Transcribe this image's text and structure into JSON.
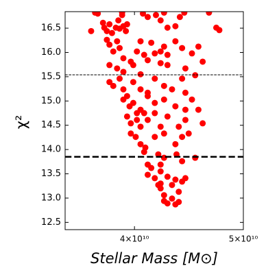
{
  "chart_data": {
    "type": "scatter",
    "x_label": "Stellar Mass [M⊙]",
    "y_label": "χ²",
    "color": "#ff0000",
    "xscale": "log",
    "xlim": [
      34700000000.0,
      50000000000.0
    ],
    "xticks": [
      {
        "value": 40000000000.0,
        "label": "4×10¹⁰"
      },
      {
        "value": 50000000000.0,
        "label": "5×10¹⁰"
      }
    ],
    "ylim": [
      12.35,
      16.84
    ],
    "yticks": [
      12.5,
      {
        "value": 13,
        "label": "13.0"
      },
      13.5,
      {
        "value": 14,
        "label": "14.0"
      },
      14.5,
      {
        "value": 15,
        "label": "15.0"
      },
      15.5,
      {
        "value": 16,
        "label": "16.0"
      },
      16.5
    ],
    "hlines": [
      {
        "value": 15.54,
        "linewidth": 1
      },
      {
        "value": 13.85,
        "linewidth": 2.5
      }
    ],
    "x": [
      36600000000.0,
      36900000000.0,
      37100000000.0,
      37500000000.0,
      37600000000.0,
      37800000000.0,
      38000000000.0,
      38200000000.0,
      38500000000.0,
      38700000000.0,
      38800000000.0,
      39000000000.0,
      39100000000.0,
      39300000000.0,
      39400000000.0,
      39000000000.0,
      40700000000.0,
      41100000000.0,
      41800000000.0,
      42200000000.0,
      42500000000.0,
      42800000000.0,
      43500000000.0,
      43900000000.0,
      44300000000.0,
      46600000000.0,
      47300000000.0,
      47600000000.0,
      37800000000.0,
      38000000000.0,
      38300000000.0,
      38600000000.0,
      38800000000.0,
      39100000000.0,
      39700000000.0,
      40200000000.0,
      40500000000.0,
      40800000000.0,
      41400000000.0,
      41700000000.0,
      42200000000.0,
      42500000000.0,
      42800000000.0,
      43500000000.0,
      44100000000.0,
      45000000000.0,
      45600000000.0,
      38000000000.0,
      38600000000.0,
      39100000000.0,
      39900000000.0,
      40500000000.0,
      41100000000.0,
      42200000000.0,
      42800000000.0,
      44400000000.0,
      45300000000.0,
      46000000000.0,
      38000000000.0,
      38300000000.0,
      38800000000.0,
      39100000000.0,
      39400000000.0,
      39900000000.0,
      40500000000.0,
      41100000000.0,
      41700000000.0,
      42500000000.0,
      43200000000.0,
      44100000000.0,
      44400000000.0,
      39100000000.0,
      39600000000.0,
      39900000000.0,
      40200000000.0,
      40500000000.0,
      41100000000.0,
      41700000000.0,
      42500000000.0,
      43500000000.0,
      44400000000.0,
      45000000000.0,
      45600000000.0,
      39400000000.0,
      39700000000.0,
      40200000000.0,
      40500000000.0,
      40800000000.0,
      41100000000.0,
      41700000000.0,
      42200000000.0,
      42800000000.0,
      43800000000.0,
      44400000000.0,
      46000000000.0,
      39700000000.0,
      40100000000.0,
      40500000000.0,
      40900000000.0,
      41700000000.0,
      42500000000.0,
      43500000000.0,
      44100000000.0,
      44700000000.0,
      45300000000.0,
      40800000000.0,
      41100000000.0,
      41400000000.0,
      42000000000.0,
      42200000000.0,
      42500000000.0,
      43600000000.0,
      44100000000.0,
      41100000000.0,
      41700000000.0,
      42200000000.0,
      42800000000.0,
      43500000000.0,
      44400000000.0,
      42000000000.0,
      42200000000.0,
      42500000000.0,
      43200000000.0,
      43800000000.0,
      44100000000.0,
      42500000000.0,
      42800000000.0,
      43500000000.0,
      43800000000.0,
      43200000000.0,
      42200000000.0
    ],
    "y": [
      16.44,
      16.82,
      16.8,
      16.61,
      16.51,
      16.44,
      16.58,
      16.4,
      16.51,
      16.66,
      16.49,
      16.77,
      16.54,
      16.44,
      16.58,
      16.82,
      16.8,
      16.73,
      16.77,
      16.66,
      16.82,
      16.51,
      16.54,
      16.73,
      16.82,
      16.82,
      16.51,
      16.46,
      16.26,
      16.16,
      16.02,
      16.23,
      16.09,
      15.88,
      15.81,
      16.02,
      16.23,
      15.95,
      16.2,
      15.98,
      16.02,
      16.12,
      15.95,
      16.23,
      16.09,
      15.98,
      16.12,
      15.74,
      15.67,
      15.6,
      15.74,
      15.55,
      15.84,
      15.78,
      15.74,
      15.67,
      15.53,
      15.81,
      15.39,
      15.31,
      15.46,
      15.24,
      15.1,
      15.39,
      15.24,
      15.17,
      15.46,
      15.31,
      15.24,
      15.46,
      15.17,
      15.03,
      14.89,
      14.96,
      14.75,
      14.82,
      15.1,
      14.96,
      15.03,
      14.89,
      14.82,
      15.03,
      14.82,
      14.68,
      14.54,
      14.61,
      14.47,
      14.75,
      14.61,
      14.75,
      14.47,
      14.68,
      14.47,
      14.61,
      14.54,
      14.33,
      14.26,
      14.11,
      14.04,
      14.26,
      14.33,
      14.11,
      14.26,
      14.33,
      13.83,
      13.95,
      13.69,
      13.62,
      13.9,
      13.69,
      13.83,
      13.9,
      13.76,
      13.48,
      13.41,
      13.55,
      13.44,
      13.38,
      13.41,
      13.27,
      13.2,
      13.06,
      13.27,
      13.13,
      13.34,
      12.94,
      12.89,
      12.87,
      12.92,
      12.99,
      13.3
    ]
  }
}
